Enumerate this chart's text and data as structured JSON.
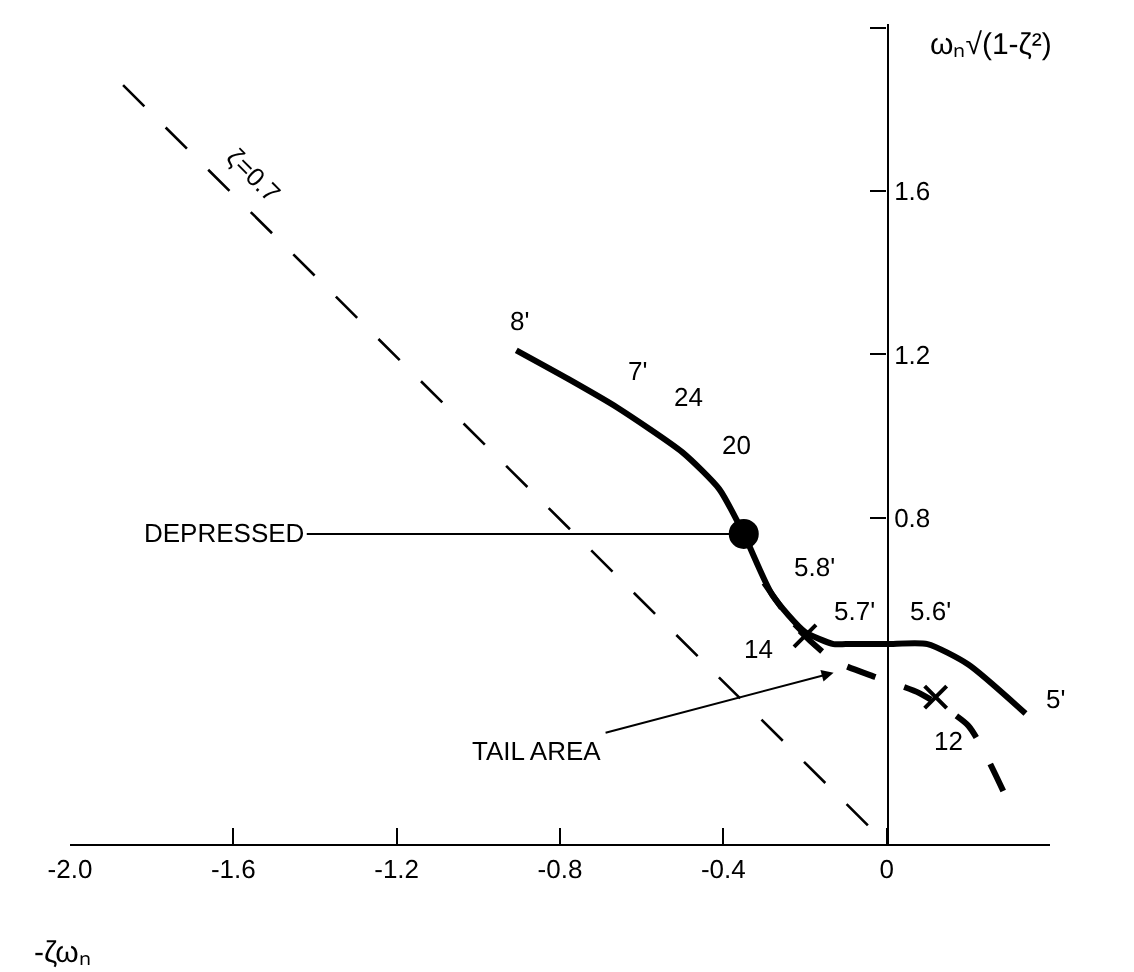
{
  "chart_data": {
    "type": "line",
    "xlabel": "-ζωₙ",
    "ylabel": "ωₙ√(1-ζ²)",
    "xlim": [
      -2.0,
      0.4
    ],
    "ylim": [
      0,
      2.01
    ],
    "xticks": [
      {
        "value": -2.0,
        "label": "-2.0"
      },
      {
        "value": -1.6,
        "label": "-1.6"
      },
      {
        "value": -1.2,
        "label": "-1.2"
      },
      {
        "value": -0.8,
        "label": "-0.8"
      },
      {
        "value": -0.4,
        "label": "-0.4"
      },
      0
    ],
    "yticks": [
      {
        "value": 2.0,
        "label": null
      },
      1.6,
      1.2,
      0.8
    ],
    "grid": false,
    "series": [
      {
        "color": "#000000",
        "line_style": "solid",
        "marker": "none",
        "x": [
          -0.907,
          -0.78,
          -0.66,
          -0.5,
          -0.41,
          -0.35,
          -0.28,
          -0.2,
          -0.13,
          -0.1,
          0,
          0.1,
          0.2,
          0.34
        ],
        "values": [
          1.21,
          1.14,
          1.07,
          0.96,
          0.87,
          0.76,
          0.61,
          0.52,
          0.49,
          0.49,
          0.49,
          0.49,
          0.44,
          0.32
        ]
      },
      {
        "color": "#000000",
        "line_style": "dashed",
        "marker": "none",
        "x": [
          -0.3,
          -0.22,
          -0.13,
          -0.03,
          0.08,
          0.2,
          0.29
        ],
        "values": [
          0.64,
          0.53,
          0.45,
          0.41,
          0.37,
          0.29,
          0.12
        ]
      },
      {
        "color": "#000000",
        "line_style": "dashed",
        "marker": "none",
        "x": [
          -1.87,
          0
        ],
        "values": [
          1.86,
          0
        ]
      },
      {
        "type": "scatter",
        "color": "#000000",
        "marker": "cross",
        "x": [
          -0.2,
          0.12
        ],
        "values": [
          0.51,
          0.36
        ]
      },
      {
        "type": "scatter",
        "color": "#000000",
        "marker": "circle",
        "x": [
          -0.35
        ],
        "values": [
          0.76
        ]
      }
    ],
    "annotations": [
      {
        "text": "8'",
        "x": -0.907,
        "y": 1.21
      },
      {
        "text": "7'",
        "x": -0.66,
        "y": 1.05
      },
      {
        "text": "24",
        "x": -0.56,
        "y": 1.01
      },
      {
        "text": "20",
        "x": -0.48,
        "y": 0.95
      },
      {
        "text": "5.8'",
        "x": -0.28,
        "y": 0.61
      },
      {
        "text": "5.7'",
        "x": -0.1,
        "y": 0.49
      },
      {
        "text": "5.6'",
        "x": 0,
        "y": 0.49
      },
      {
        "text": "5'",
        "x": 0.34,
        "y": 0.32
      },
      {
        "text": "14",
        "x": -0.2,
        "y": 0.51
      },
      {
        "text": "12",
        "x": 0.12,
        "y": 0.36
      },
      {
        "text": "ζ=0.7",
        "x": -1.6,
        "y": 1.59
      },
      {
        "text": "DEPRESSED",
        "x": -0.35,
        "y": 0.76
      },
      {
        "text": "TAIL AREA",
        "x": -0.13,
        "y": 0.42
      }
    ]
  }
}
